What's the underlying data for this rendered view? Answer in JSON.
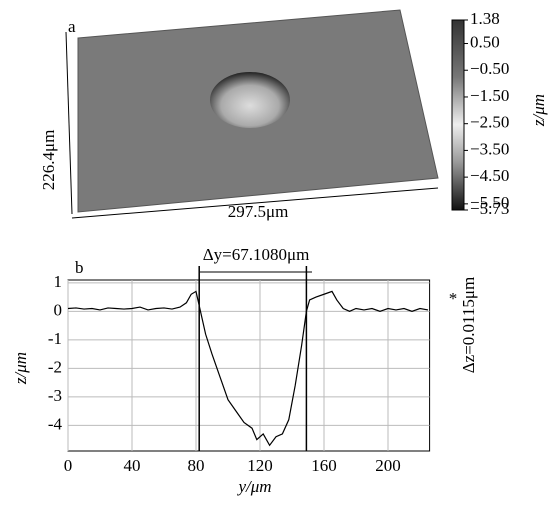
{
  "chart_data": [
    {
      "type": "surface",
      "panel_label": "a",
      "width_label": "297.5μm",
      "depth_label": "226.4μm",
      "colorbar_label": "z/μm",
      "clim": [
        -5.73,
        1.38
      ],
      "colorbar_ticks": [
        1.38,
        {
          "value": 0.5,
          "label": "0.50"
        },
        {
          "value": -0.5,
          "label": "−0.50"
        },
        {
          "value": -1.5,
          "label": "−1.50"
        },
        {
          "value": -2.5,
          "label": "−2.50"
        },
        {
          "value": -3.5,
          "label": "−3.50"
        },
        {
          "value": -4.5,
          "label": "−4.50"
        },
        {
          "value": -5.5,
          "label": "−5.50"
        },
        {
          "value": -5.73,
          "label": "−5.73"
        }
      ]
    },
    {
      "type": "line",
      "panel_label": "b",
      "xlabel": "y/μm",
      "ylabel": "z/μm",
      "annotation": "Δy=67.1080μm",
      "side_annotation": "Δz=0.0115μm",
      "side_marker": "*",
      "cursors": [
        82,
        149
      ],
      "x": [
        0,
        5,
        10,
        15,
        20,
        25,
        30,
        35,
        40,
        45,
        50,
        55,
        60,
        65,
        70,
        74,
        77,
        80,
        82,
        84,
        86,
        90,
        95,
        100,
        105,
        110,
        115,
        118,
        122,
        126,
        130,
        134,
        138,
        142,
        146,
        149,
        151,
        155,
        160,
        165,
        168,
        172,
        176,
        180,
        185,
        190,
        195,
        200,
        205,
        210,
        215,
        220,
        225
      ],
      "series": [
        {
          "color": "#000000",
          "values": [
            0.1,
            0.12,
            0.08,
            0.1,
            0.05,
            0.12,
            0.1,
            0.08,
            0.1,
            0.15,
            0.05,
            0.1,
            0.12,
            0.08,
            0.15,
            0.3,
            0.6,
            0.7,
            0.2,
            -0.3,
            -0.8,
            -1.5,
            -2.3,
            -3.1,
            -3.5,
            -3.9,
            -4.1,
            -4.5,
            -4.3,
            -4.7,
            -4.4,
            -4.3,
            -3.8,
            -2.6,
            -1.2,
            0,
            0.4,
            0.5,
            0.6,
            0.7,
            0.4,
            0.1,
            0,
            0.1,
            0.05,
            0.1,
            0,
            0.1,
            0.05,
            0.1,
            0,
            0.1,
            0.05
          ]
        }
      ],
      "xlim": [
        0,
        226
      ],
      "ylim": [
        -4.9,
        1.1
      ],
      "xticks": [
        0,
        40,
        80,
        120,
        160,
        200
      ],
      "yticks": [
        1,
        0,
        -1,
        -2,
        -3,
        -4
      ],
      "grid": true
    }
  ]
}
